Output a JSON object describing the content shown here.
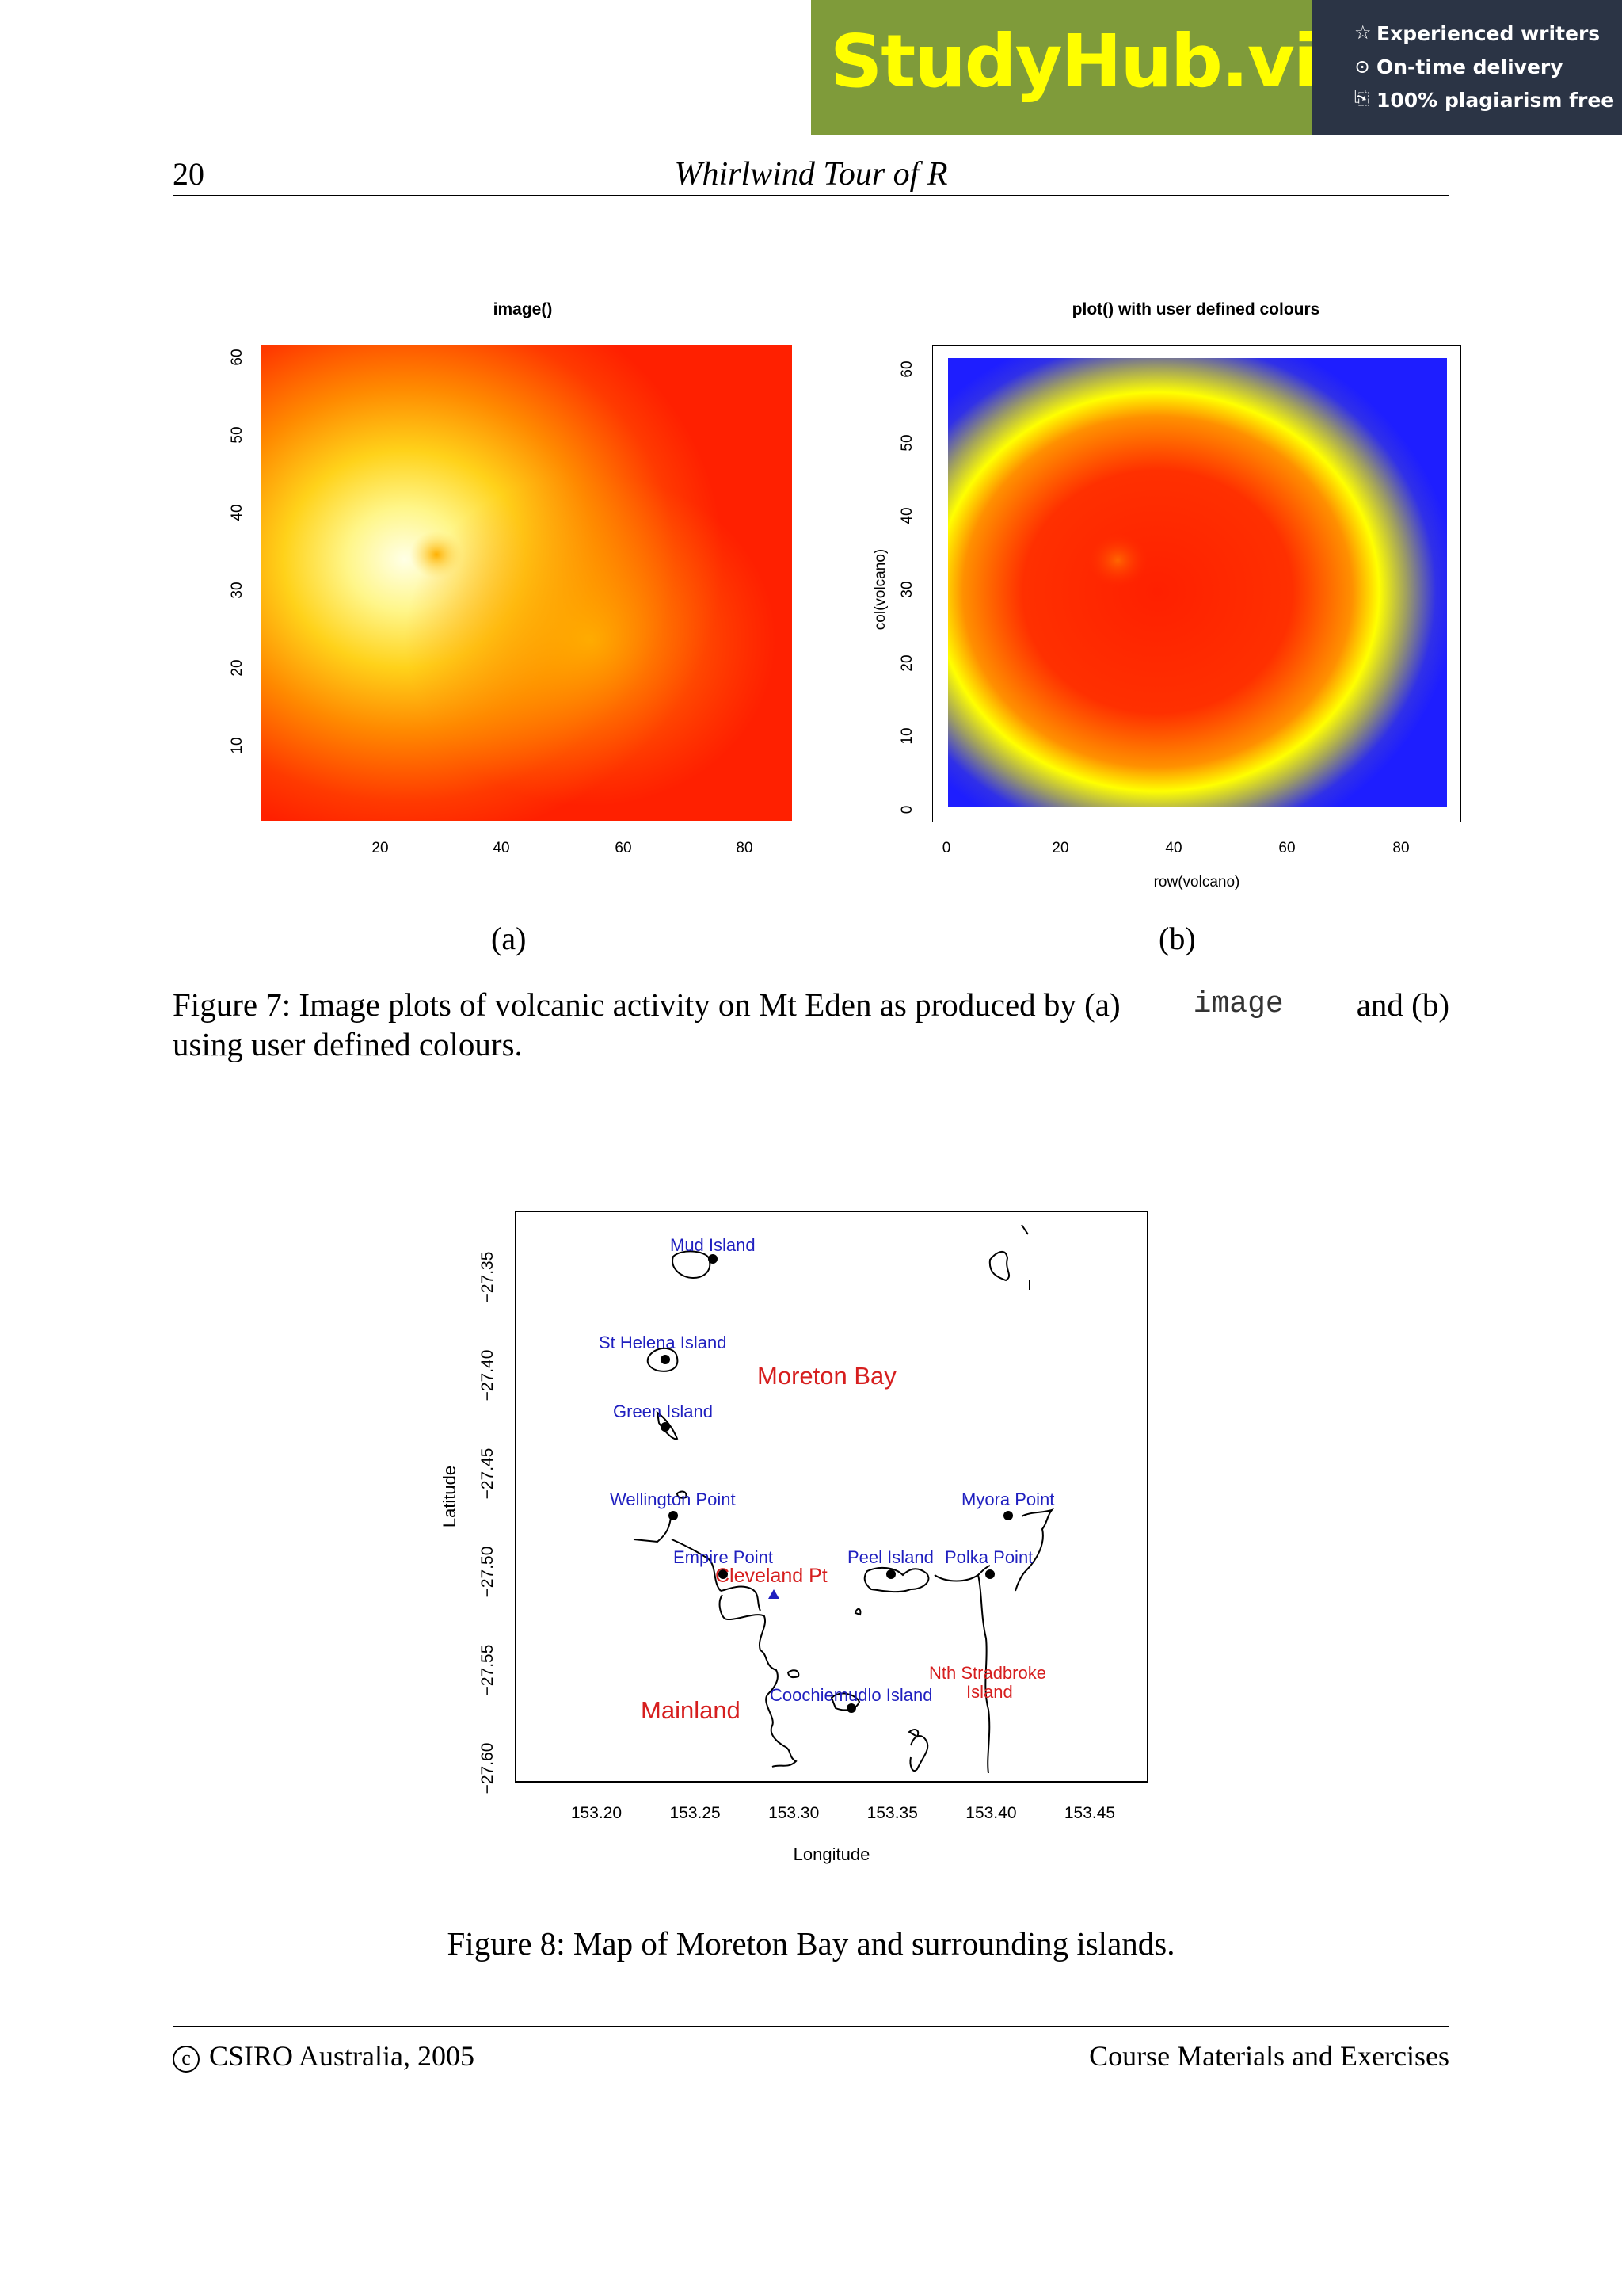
{
  "banner": {
    "logo_text": "StudyHub.vip",
    "features": [
      "Experienced writers",
      "On-time delivery",
      "100% plagiarism free"
    ]
  },
  "header": {
    "page_number": "20",
    "running_title": "Whirlwind Tour of R"
  },
  "figure7": {
    "panel_a": {
      "title": "image()",
      "x_ticks": [
        "20",
        "40",
        "60",
        "80"
      ],
      "y_ticks": [
        "10",
        "20",
        "30",
        "40",
        "50",
        "60"
      ],
      "sub_label": "(a)"
    },
    "panel_b": {
      "title": "plot() with user defined colours",
      "x_ticks": [
        "0",
        "20",
        "40",
        "60",
        "80"
      ],
      "y_ticks": [
        "0",
        "10",
        "20",
        "30",
        "40",
        "50",
        "60"
      ],
      "xlabel": "row(volcano)",
      "ylabel": "col(volcano)",
      "sub_label": "(b)"
    },
    "caption_prefix": "Figure 7: Image plots of volcanic activity on Mt Eden as produced by (a)",
    "caption_code": "image",
    "caption_mid": "and (b)",
    "caption_line2": "using user defined colours."
  },
  "figure8": {
    "x_ticks": [
      "153.20",
      "153.25",
      "153.30",
      "153.35",
      "153.40",
      "153.45"
    ],
    "y_ticks": [
      "−27.35",
      "−27.40",
      "−27.45",
      "−27.50",
      "−27.55",
      "−27.60"
    ],
    "xlabel": "Longitude",
    "ylabel": "Latitude",
    "places": [
      {
        "name": "Mud Island",
        "lon": 153.26,
        "lat": -27.34
      },
      {
        "name": "St Helena Island",
        "lon": 153.236,
        "lat": -27.39
      },
      {
        "name": "Green Island",
        "lon": 153.236,
        "lat": -27.425
      },
      {
        "name": "Wellington Point",
        "lon": 153.24,
        "lat": -27.47
      },
      {
        "name": "Empire Point",
        "lon": 153.265,
        "lat": -27.5
      },
      {
        "name": "Peel Island",
        "lon": 153.35,
        "lat": -27.5
      },
      {
        "name": "Polka Point",
        "lon": 153.4,
        "lat": -27.5
      },
      {
        "name": "Myora Point",
        "lon": 153.41,
        "lat": -27.47
      },
      {
        "name": "Coochiemudlo Island",
        "lon": 153.33,
        "lat": -27.57
      }
    ],
    "region_labels": [
      "Moreton Bay",
      "Cleveland Pt",
      "Mainland",
      "Nth Stradbroke",
      "Island"
    ],
    "caption": "Figure 8: Map of Moreton Bay and surrounding islands."
  },
  "footer": {
    "copyright_symbol": "c",
    "left": "CSIRO Australia, 2005",
    "right": "Course Materials and Exercises"
  }
}
